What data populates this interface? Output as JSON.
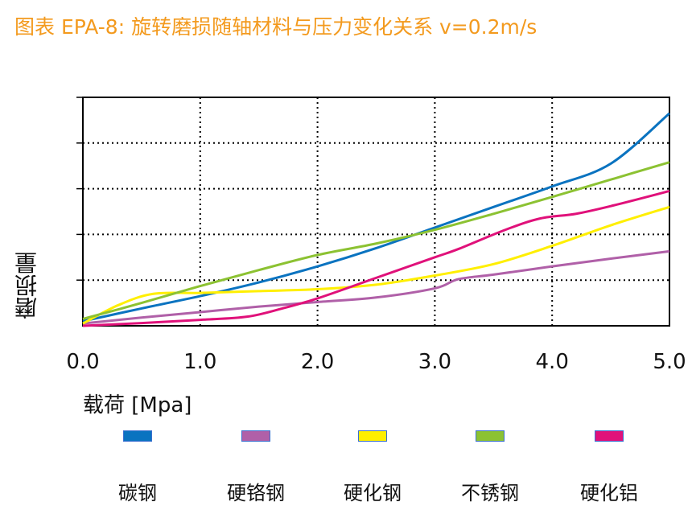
{
  "title": "图表 EPA-8: 旋转磨损随轴材料与压力变化关系 v=0.2m/s",
  "chart_data": {
    "type": "line",
    "ylabel": "磨损量",
    "xlabel": "载荷  [Mpa]",
    "xlim": [
      0,
      5
    ],
    "x_ticks": [
      "0.0",
      "1.0",
      "2.0",
      "3.0",
      "4.0",
      "5.0"
    ],
    "y_ticks_count": 5,
    "ylim": [
      0,
      5
    ],
    "grid": true,
    "legend_position": "bottom",
    "series": [
      {
        "name": "碳钢",
        "color": "#0a73c0",
        "points": [
          [
            0,
            0.1
          ],
          [
            0.5,
            0.38
          ],
          [
            1,
            0.65
          ],
          [
            1.5,
            0.95
          ],
          [
            2,
            1.3
          ],
          [
            2.5,
            1.7
          ],
          [
            3,
            2.15
          ],
          [
            3.5,
            2.6
          ],
          [
            4,
            3.05
          ],
          [
            4.5,
            3.55
          ],
          [
            5,
            4.65
          ]
        ]
      },
      {
        "name": "硬铬钢",
        "color": "#b060a8",
        "points": [
          [
            0,
            0.05
          ],
          [
            0.5,
            0.18
          ],
          [
            1,
            0.3
          ],
          [
            1.5,
            0.42
          ],
          [
            2,
            0.52
          ],
          [
            2.5,
            0.62
          ],
          [
            3,
            0.82
          ],
          [
            3.2,
            1.02
          ],
          [
            3.5,
            1.12
          ],
          [
            4,
            1.3
          ],
          [
            4.5,
            1.47
          ],
          [
            5,
            1.63
          ]
        ]
      },
      {
        "name": "硬化钢",
        "color": "#ffef00",
        "points": [
          [
            0,
            0.05
          ],
          [
            0.3,
            0.45
          ],
          [
            0.6,
            0.7
          ],
          [
            1,
            0.72
          ],
          [
            1.5,
            0.76
          ],
          [
            2,
            0.8
          ],
          [
            2.5,
            0.9
          ],
          [
            3,
            1.1
          ],
          [
            3.5,
            1.35
          ],
          [
            4,
            1.75
          ],
          [
            4.5,
            2.2
          ],
          [
            5,
            2.6
          ]
        ]
      },
      {
        "name": "不锈钢",
        "color": "#8cc232",
        "points": [
          [
            0,
            0.15
          ],
          [
            0.5,
            0.5
          ],
          [
            1,
            0.87
          ],
          [
            1.5,
            1.22
          ],
          [
            2,
            1.55
          ],
          [
            2.5,
            1.8
          ],
          [
            3,
            2.1
          ],
          [
            3.5,
            2.45
          ],
          [
            4,
            2.82
          ],
          [
            4.5,
            3.2
          ],
          [
            5,
            3.58
          ]
        ]
      },
      {
        "name": "硬化铝",
        "color": "#e0117a",
        "points": [
          [
            0,
            0.0
          ],
          [
            0.5,
            0.06
          ],
          [
            1,
            0.13
          ],
          [
            1.4,
            0.2
          ],
          [
            1.7,
            0.38
          ],
          [
            2,
            0.6
          ],
          [
            2.5,
            1.05
          ],
          [
            3,
            1.5
          ],
          [
            3.2,
            1.68
          ],
          [
            3.6,
            2.1
          ],
          [
            3.9,
            2.35
          ],
          [
            4.2,
            2.45
          ],
          [
            4.5,
            2.62
          ],
          [
            5,
            2.95
          ]
        ]
      }
    ]
  }
}
